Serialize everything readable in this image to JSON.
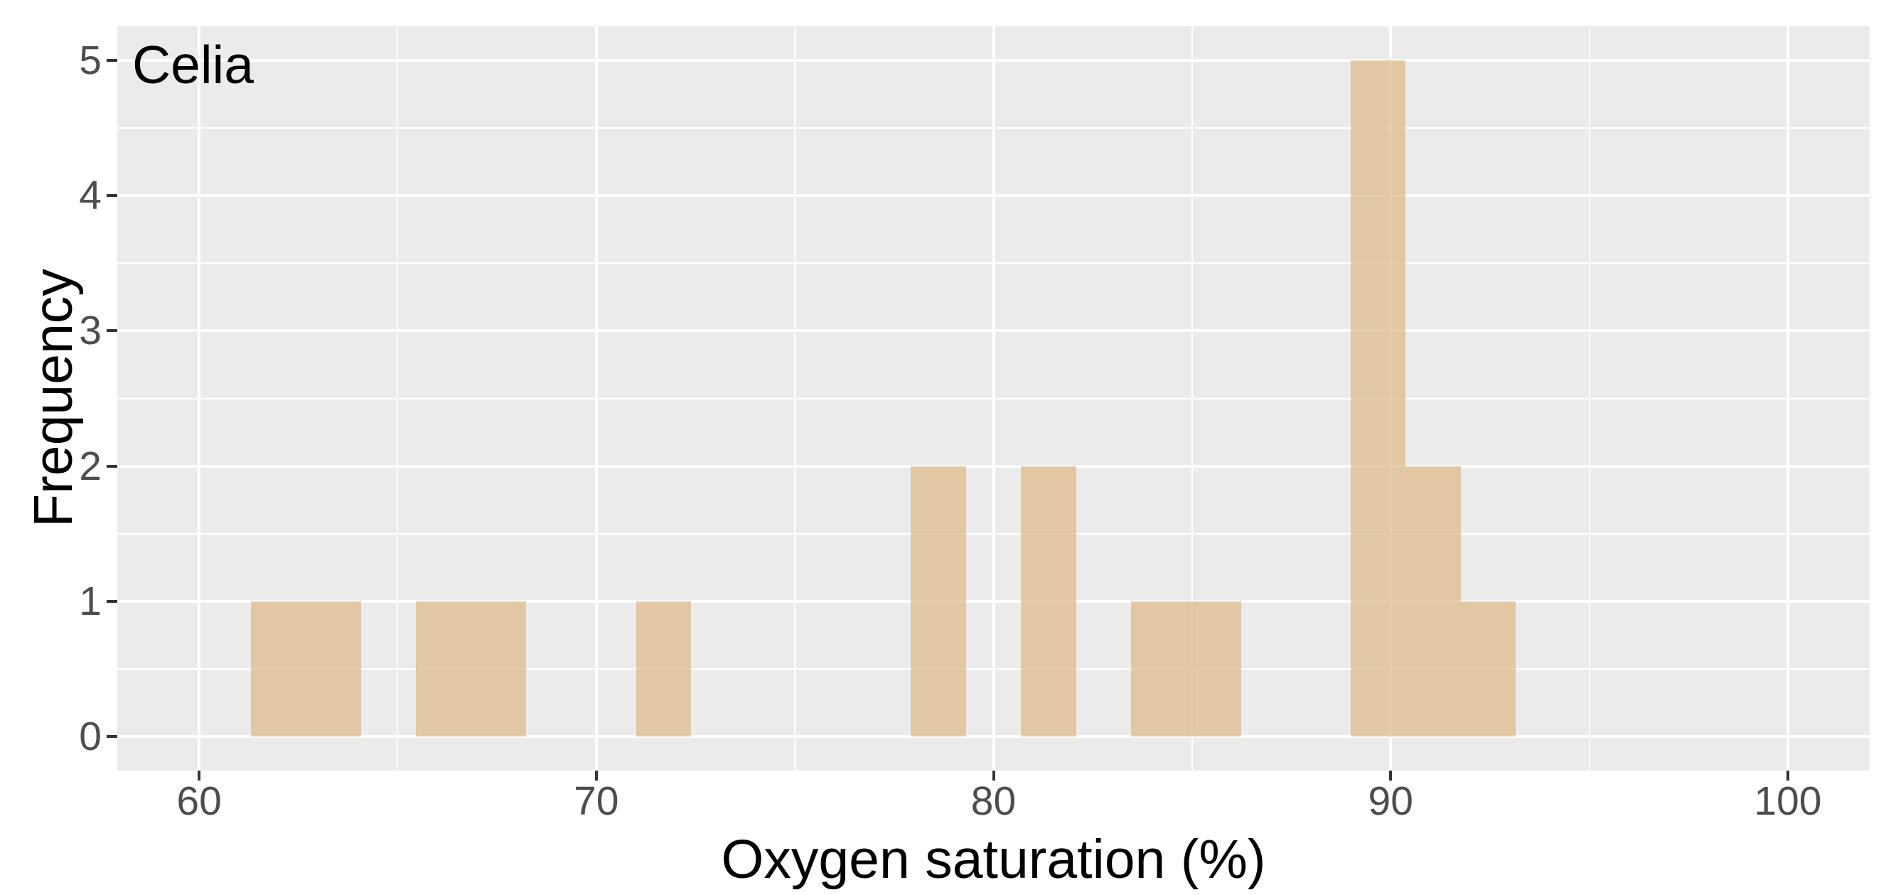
{
  "chart_data": {
    "type": "bar",
    "subtype": "histogram",
    "annotation": "Celia",
    "xlabel": "Oxygen saturation (%)",
    "ylabel": "Frequency",
    "x_ticks": [
      60,
      70,
      80,
      90,
      100
    ],
    "x_minor_ticks": [
      65,
      75,
      85,
      95
    ],
    "y_ticks": [
      0,
      1,
      2,
      3,
      4,
      5
    ],
    "y_minor_ticks": [
      0.5,
      1.5,
      2.5,
      3.5,
      4.5
    ],
    "xlim": [
      60,
      100
    ],
    "ylim": [
      0,
      5
    ],
    "x_domain": [
      57.94,
      102.06
    ],
    "y_domain": [
      -0.25,
      5.25
    ],
    "grid": true,
    "legend_position": "none",
    "bin_width": 1.385,
    "bins": [
      {
        "x0": 61.31,
        "x1": 62.69,
        "count": 1
      },
      {
        "x0": 62.69,
        "x1": 64.08,
        "count": 1
      },
      {
        "x0": 65.46,
        "x1": 66.85,
        "count": 1
      },
      {
        "x0": 66.85,
        "x1": 68.23,
        "count": 1
      },
      {
        "x0": 71.0,
        "x1": 72.38,
        "count": 1
      },
      {
        "x0": 77.92,
        "x1": 79.31,
        "count": 2
      },
      {
        "x0": 80.69,
        "x1": 82.08,
        "count": 2
      },
      {
        "x0": 83.46,
        "x1": 84.85,
        "count": 1
      },
      {
        "x0": 84.85,
        "x1": 86.23,
        "count": 1
      },
      {
        "x0": 89.0,
        "x1": 90.38,
        "count": 5
      },
      {
        "x0": 90.38,
        "x1": 91.77,
        "count": 2
      },
      {
        "x0": 91.77,
        "x1": 93.15,
        "count": 1
      }
    ],
    "colors": {
      "page_bg": "#FFFFFF",
      "panel_bg": "#EBEBEB",
      "grid_major": "#FFFFFF",
      "grid_minor": "#FFFFFF",
      "bar_fill": "#DEB887",
      "bar_alpha": 0.72,
      "tick_mark": "#333333",
      "tick_label": "#4D4D4D",
      "axis_title": "#000000",
      "annotation": "#000000"
    }
  }
}
